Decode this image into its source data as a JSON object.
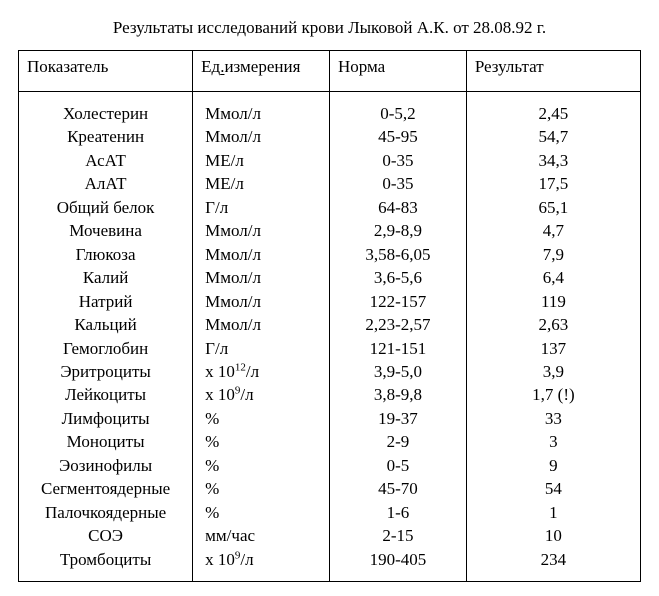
{
  "title": "Результаты исследований крови Лыковой А.К. от 28.08.92 г.",
  "headers": {
    "indicator": "Показатель",
    "unit_prefix": "Ед",
    "unit_suffix": "измерения",
    "norm": "Норма",
    "result": "Результат"
  },
  "rows": [
    {
      "indicator": "Холестерин",
      "unit": "Ммол/л",
      "norm": "0-5,2",
      "result": "2,45"
    },
    {
      "indicator": "Креатенин",
      "unit": "Ммол/л",
      "norm": "45-95",
      "result": "54,7"
    },
    {
      "indicator": "АсАТ",
      "unit": "МЕ/л",
      "norm": "0-35",
      "result": "34,3"
    },
    {
      "indicator": "АлАТ",
      "unit": "МЕ/л",
      "norm": "0-35",
      "result": "17,5"
    },
    {
      "indicator": "Общий белок",
      "unit": "Г/л",
      "norm": "64-83",
      "result": "65,1"
    },
    {
      "indicator": "Мочевина",
      "unit": "Ммол/л",
      "norm": "2,9-8,9",
      "result": "4,7"
    },
    {
      "indicator": "Глюкоза",
      "unit": "Ммол/л",
      "norm": "3,58-6,05",
      "result": "7,9"
    },
    {
      "indicator": "Калий",
      "unit": "Ммол/л",
      "norm": "3,6-5,6",
      "result": "6,4"
    },
    {
      "indicator": "Натрий",
      "unit": "Ммол/л",
      "norm": "122-157",
      "result": "119"
    },
    {
      "indicator": "Кальций",
      "unit": "Ммол/л",
      "norm": "2,23-2,57",
      "result": "2,63"
    },
    {
      "indicator": "Гемоглобин",
      "unit": "Г/л",
      "norm": "121-151",
      "result": "137"
    },
    {
      "indicator": "Эритроциты",
      "unit": "x 10^12/л",
      "norm": "3,9-5,0",
      "result": "3,9"
    },
    {
      "indicator": "Лейкоциты",
      "unit": "x 10^9/л",
      "norm": "3,8-9,8",
      "result": "1,7 (!)"
    },
    {
      "indicator": "Лимфоциты",
      "unit": "%",
      "norm": "19-37",
      "result": "33"
    },
    {
      "indicator": "Моноциты",
      "unit": "%",
      "norm": "2-9",
      "result": "3"
    },
    {
      "indicator": "Эозинофилы",
      "unit": "%",
      "norm": "0-5",
      "result": "9"
    },
    {
      "indicator": "Сегментоядерные",
      "unit": "%",
      "norm": "45-70",
      "result": "54"
    },
    {
      "indicator": "Палочкоядерные",
      "unit": "%",
      "norm": "1-6",
      "result": "1"
    },
    {
      "indicator": "СОЭ",
      "unit": "мм/час",
      "norm": "2-15",
      "result": "10"
    },
    {
      "indicator": "Тромбоциты",
      "unit": "x 10^9/л",
      "norm": "190-405",
      "result": "234"
    }
  ]
}
